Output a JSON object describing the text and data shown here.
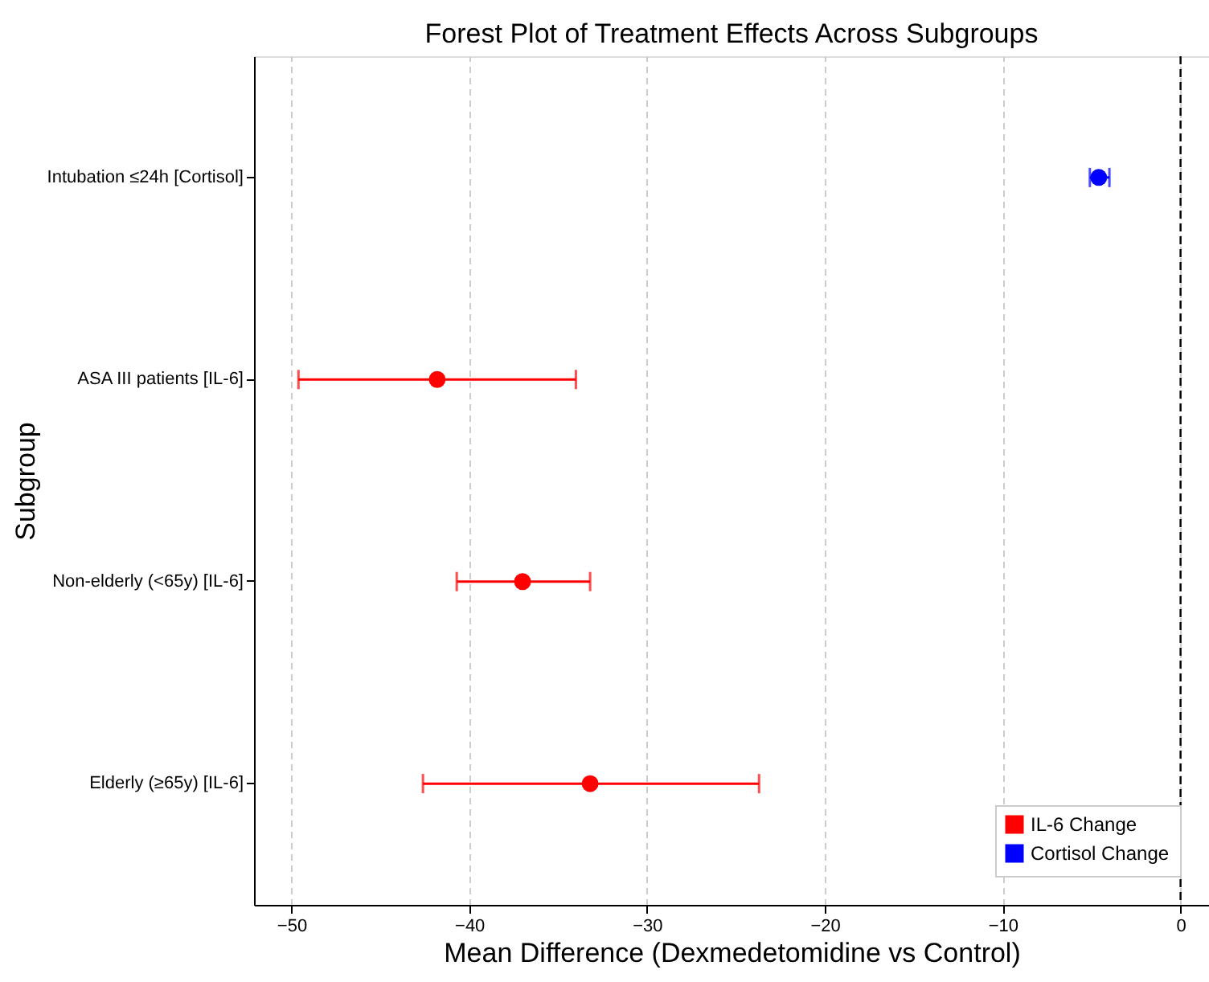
{
  "chart_data": {
    "type": "scatter",
    "title": "Forest Plot of Treatment Effects Across Subgroups",
    "xlabel": "Mean Difference (Dexmedetomidine vs Control)",
    "ylabel": "Subgroup",
    "categories": [
      "Intubation ≤24h [Cortisol]",
      "ASA III patients [IL-6]",
      "Non-elderly (<65y) [IL-6]",
      "Elderly (≥65y) [IL-6]"
    ],
    "orientation": "horizontal",
    "series": [
      {
        "name": "IL-6 Change",
        "color": "#ff0000",
        "values": [
          null,
          -41.8,
          -37.0,
          -33.2
        ],
        "errors": [
          null,
          [
            -49.6,
            -34.0
          ],
          [
            -40.7,
            -33.2
          ],
          [
            -42.6,
            -23.7
          ]
        ]
      },
      {
        "name": "Cortisol Change",
        "color": "#0000ff",
        "values": [
          -4.6,
          null,
          null,
          null
        ],
        "errors": [
          [
            -5.1,
            -4.0
          ],
          null,
          null,
          null
        ]
      }
    ],
    "xlim": [
      -52.1,
      1.6
    ],
    "xticks": [
      -50,
      -40,
      -30,
      -20,
      -10,
      0
    ],
    "ref_lines": [
      {
        "axis": "x",
        "value": 0,
        "color": "#000000",
        "line_style": "dashed"
      }
    ],
    "grid": "x",
    "legend": "bottom right",
    "marker": "circle"
  }
}
